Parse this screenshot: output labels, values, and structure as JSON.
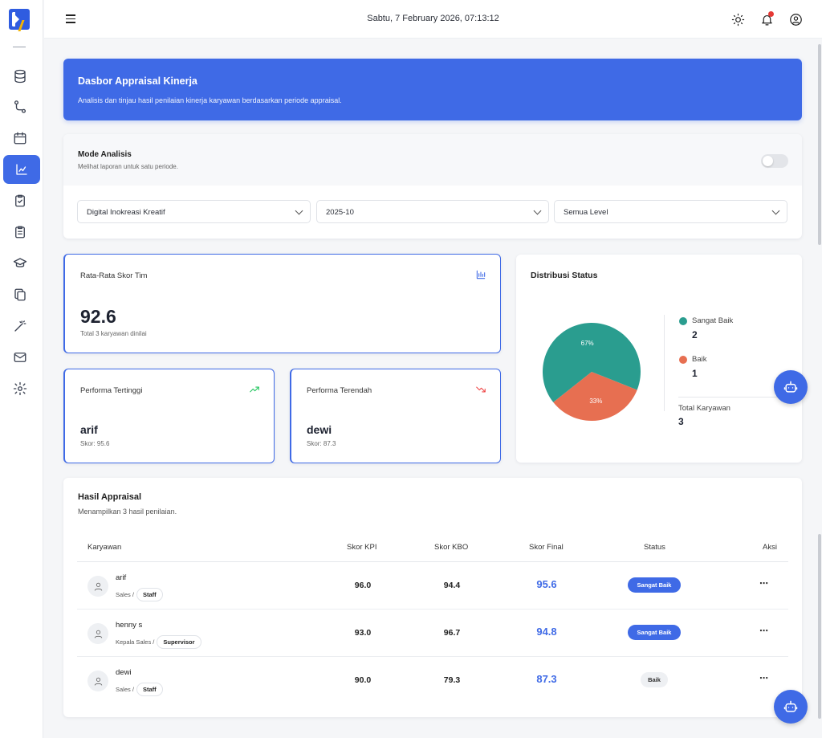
{
  "topbar": {
    "datetime": "Sabtu,  7 February 2026, 07:13:12"
  },
  "sidebar": {
    "items": [
      {
        "icon": "database-icon"
      },
      {
        "icon": "workflow-icon"
      },
      {
        "icon": "calendar-icon"
      },
      {
        "icon": "chart-icon",
        "active": true
      },
      {
        "icon": "clipboard-check-icon"
      },
      {
        "icon": "clipboard-list-icon"
      },
      {
        "icon": "graduation-cap-icon"
      },
      {
        "icon": "copy-icon"
      },
      {
        "icon": "magic-wand-icon"
      },
      {
        "icon": "mail-icon"
      },
      {
        "icon": "settings-icon"
      }
    ]
  },
  "banner": {
    "title": "Dasbor Appraisal Kinerja",
    "subtitle": "Analisis dan tinjau hasil penilaian kinerja karyawan berdasarkan periode appraisal."
  },
  "mode": {
    "title": "Mode Analisis",
    "subtitle": "Melihat laporan untuk satu periode.",
    "toggle_on": false
  },
  "filters": {
    "company": "Digital Inokreasi Kreatif",
    "period": "2025-10",
    "level": "Semua Level"
  },
  "stats": {
    "avg": {
      "label": "Rata-Rata Skor Tim",
      "value": "92.6",
      "sub": "Total 3 karyawan dinilai"
    },
    "top": {
      "label": "Performa Tertinggi",
      "name": "arif",
      "sub": "Skor: 95.6"
    },
    "low": {
      "label": "Performa Terendah",
      "name": "dewi",
      "sub": "Skor: 87.3"
    }
  },
  "distribution": {
    "title": "Distribusi Status",
    "slices": [
      {
        "label": "Sangat Baik",
        "count": "2",
        "percent_label": "67%",
        "color": "#2a9d8f"
      },
      {
        "label": "Baik",
        "count": "1",
        "percent_label": "33%",
        "color": "#e76f51"
      }
    ],
    "total_label": "Total Karyawan",
    "total_value": "3"
  },
  "table": {
    "title": "Hasil Appraisal",
    "subtitle": "Menampilkan 3 hasil penilaian.",
    "headers": [
      "Karyawan",
      "Skor KPI",
      "Skor KBO",
      "Skor Final",
      "Status",
      "Aksi"
    ],
    "rows": [
      {
        "name": "arif",
        "dept": "Sales /",
        "level": "Staff",
        "kpi": "96.0",
        "kbo": "94.4",
        "final": "95.6",
        "status": "Sangat Baik",
        "action": "⋯"
      },
      {
        "name": "henny s",
        "dept": "Kepala Sales /",
        "level": "Supervisor",
        "kpi": "93.0",
        "kbo": "96.7",
        "final": "94.8",
        "status": "Sangat Baik",
        "action": "⋯"
      },
      {
        "name": "dewi",
        "dept": "Sales /",
        "level": "Staff",
        "kpi": "90.0",
        "kbo": "79.3",
        "final": "87.3",
        "status": "Baik",
        "action": "⋯"
      }
    ]
  },
  "colors": {
    "primary": "#3f6ae6",
    "teal": "#2a9d8f",
    "coral": "#e76f51",
    "up": "#22c55e",
    "down": "#ef4444"
  }
}
